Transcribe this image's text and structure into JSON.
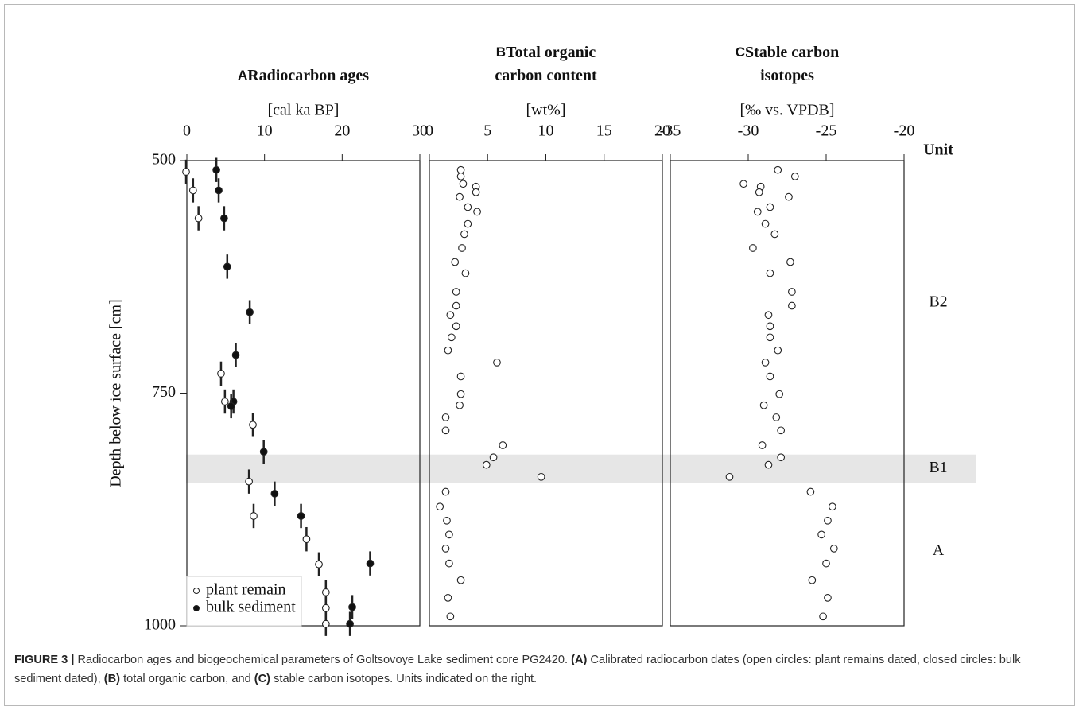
{
  "chart_data": [
    {
      "type": "scatter",
      "panel": "A",
      "title_lines": [
        "Radiocarbon ages"
      ],
      "unit": "[cal ka BP]",
      "xlim": [
        0,
        30
      ],
      "xticks": [
        0,
        10,
        20,
        30
      ],
      "ylim": [
        500,
        1000
      ],
      "yticks": [
        500,
        750,
        1000
      ],
      "ylabel": "Depth below ice surface [cm]",
      "legend": "lower left",
      "series": [
        {
          "name": "plant remain",
          "marker": "open",
          "y_error": 13,
          "x": [
            -0.1,
            0.8,
            1.5,
            4.4,
            4.9,
            8.5,
            8.0,
            8.6,
            15.4,
            17.0,
            17.9,
            17.9,
            17.9
          ],
          "y": [
            512,
            532,
            562,
            729,
            759,
            784,
            845,
            882,
            907,
            934,
            964,
            981,
            998
          ]
        },
        {
          "name": "bulk sediment",
          "marker": "filled",
          "y_error": 13,
          "x": [
            3.8,
            4.1,
            4.8,
            5.2,
            8.1,
            6.3,
            6.0,
            5.7,
            9.9,
            11.3,
            14.7,
            23.6,
            21.3,
            21.0
          ],
          "y": [
            510,
            532,
            562,
            614,
            663,
            709,
            759,
            764,
            813,
            858,
            882,
            933,
            980,
            998
          ]
        }
      ]
    },
    {
      "type": "scatter",
      "panel": "B",
      "title_lines": [
        "Total organic",
        "carbon content"
      ],
      "unit": "[wt%]",
      "xlim": [
        0,
        20
      ],
      "xticks": [
        0,
        5,
        10,
        15,
        20
      ],
      "ylim": [
        500,
        1000
      ],
      "series": [
        {
          "marker": "open",
          "x": [
            2.7,
            2.7,
            2.9,
            4.0,
            4.0,
            2.6,
            3.3,
            4.1,
            3.3,
            3.0,
            2.8,
            2.2,
            3.1,
            2.3,
            2.3,
            1.8,
            2.3,
            1.9,
            1.6,
            5.8,
            2.7,
            2.7,
            2.6,
            1.4,
            1.4,
            6.3,
            5.5,
            4.9,
            9.6,
            1.4,
            0.9,
            1.5,
            1.7,
            1.4,
            1.7,
            2.7,
            1.6,
            1.8
          ],
          "y": [
            510,
            517,
            525,
            528,
            534,
            539,
            550,
            555,
            568,
            579,
            594,
            609,
            621,
            641,
            656,
            666,
            678,
            690,
            704,
            717,
            732,
            751,
            763,
            776,
            790,
            806,
            819,
            827,
            840,
            856,
            872,
            887,
            902,
            917,
            933,
            951,
            970,
            990
          ]
        }
      ]
    },
    {
      "type": "scatter",
      "panel": "C",
      "title_lines": [
        "Stable carbon",
        "isotopes"
      ],
      "unit": "[‰ vs. VPDB]",
      "xlim": [
        -35,
        -20
      ],
      "xticks": [
        -35,
        -30,
        -25,
        -20
      ],
      "ylim": [
        500,
        1000
      ],
      "series": [
        {
          "marker": "open",
          "x": [
            -28.1,
            -27.0,
            -30.3,
            -29.2,
            -29.3,
            -27.4,
            -28.6,
            -29.4,
            -28.9,
            -28.3,
            -29.7,
            -27.3,
            -28.6,
            -27.2,
            -27.2,
            -28.7,
            -28.6,
            -28.6,
            -28.1,
            -28.9,
            -28.6,
            -28.0,
            -29.0,
            -28.2,
            -27.9,
            -29.1,
            -27.9,
            -28.7,
            -31.2,
            -26.0,
            -24.6,
            -24.9,
            -25.3,
            -24.5,
            -25.0,
            -25.9,
            -24.9,
            -25.2
          ],
          "y": [
            510,
            517,
            525,
            528,
            534,
            539,
            550,
            555,
            568,
            579,
            594,
            609,
            621,
            641,
            656,
            666,
            678,
            690,
            704,
            717,
            732,
            751,
            763,
            776,
            790,
            806,
            819,
            827,
            840,
            856,
            872,
            887,
            902,
            917,
            933,
            951,
            970,
            990
          ]
        }
      ]
    }
  ],
  "highlight_depth": [
    816,
    847
  ],
  "unit_column": {
    "title": "Unit",
    "labels": [
      {
        "label": "B2",
        "depth": 653
      },
      {
        "label": "B1",
        "depth": 831
      },
      {
        "label": "A",
        "depth": 920
      }
    ]
  },
  "caption": [
    {
      "text": "FIGURE 3 |",
      "bold": true
    },
    {
      "text": " Radiocarbon ages and biogeochemical parameters of Goltsovoye Lake sediment core PG2420. "
    },
    {
      "text": "(A)",
      "bold": true
    },
    {
      "text": " Calibrated radiocarbon dates (open circles: plant remains dated, closed circles: bulk sediment dated), "
    },
    {
      "text": "(B)",
      "bold": true
    },
    {
      "text": " total organic carbon, and "
    },
    {
      "text": "(C)",
      "bold": true
    },
    {
      "text": " stable carbon isotopes. Units indicated on the right."
    }
  ]
}
